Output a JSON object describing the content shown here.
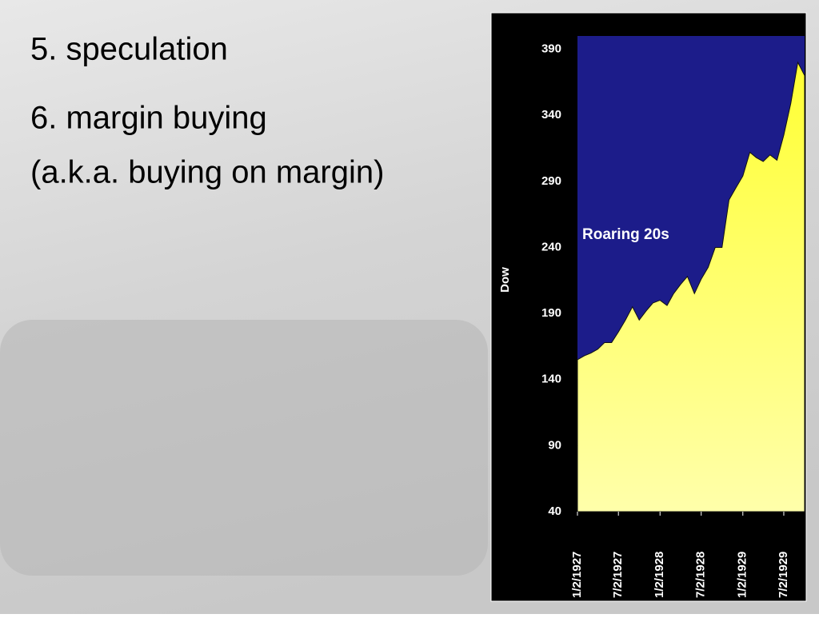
{
  "slide": {
    "lines": [
      "5. speculation",
      "6. margin buying",
      "(a.k.a. buying on margin)"
    ]
  },
  "chart_data": {
    "type": "area",
    "y_label": "Dow",
    "annotation": "Roaring 20s",
    "x": [
      "1927-01-02",
      "1927-02-02",
      "1927-03-02",
      "1927-04-02",
      "1927-05-02",
      "1927-06-02",
      "1927-07-02",
      "1927-08-02",
      "1927-09-02",
      "1927-10-02",
      "1927-11-02",
      "1927-12-02",
      "1928-01-02",
      "1928-02-02",
      "1928-03-02",
      "1928-04-02",
      "1928-05-02",
      "1928-06-02",
      "1928-07-02",
      "1928-08-02",
      "1928-09-02",
      "1928-10-02",
      "1928-11-02",
      "1928-12-02",
      "1929-01-02",
      "1929-02-02",
      "1929-03-02",
      "1929-04-02",
      "1929-05-02",
      "1929-06-02",
      "1929-07-02",
      "1929-08-02",
      "1929-09-02",
      "1929-10-02"
    ],
    "values": [
      155,
      158,
      160,
      163,
      168,
      168,
      176,
      185,
      195,
      185,
      192,
      198,
      200,
      196,
      205,
      212,
      218,
      205,
      216,
      225,
      240,
      240,
      276,
      285,
      294,
      312,
      308,
      305,
      310,
      306,
      325,
      349,
      380,
      370
    ],
    "color": "#ffff66",
    "background": "#1c1c8a",
    "xlim": [
      "1927-01-02",
      "1929-10-02"
    ],
    "xticks": [
      {
        "value": "1927-01-02",
        "label": "1/2/1927"
      },
      {
        "value": "1927-07-02",
        "label": "7/2/1927"
      },
      {
        "value": "1928-01-02",
        "label": "1/2/1928"
      },
      {
        "value": "1928-07-02",
        "label": "7/2/1928"
      },
      {
        "value": "1929-01-02",
        "label": "1/2/1929"
      },
      {
        "value": "1929-07-02",
        "label": "7/2/1929"
      }
    ],
    "ylim": [
      40,
      400
    ],
    "yticks": [
      40,
      90,
      140,
      190,
      240,
      290,
      340,
      390
    ]
  }
}
